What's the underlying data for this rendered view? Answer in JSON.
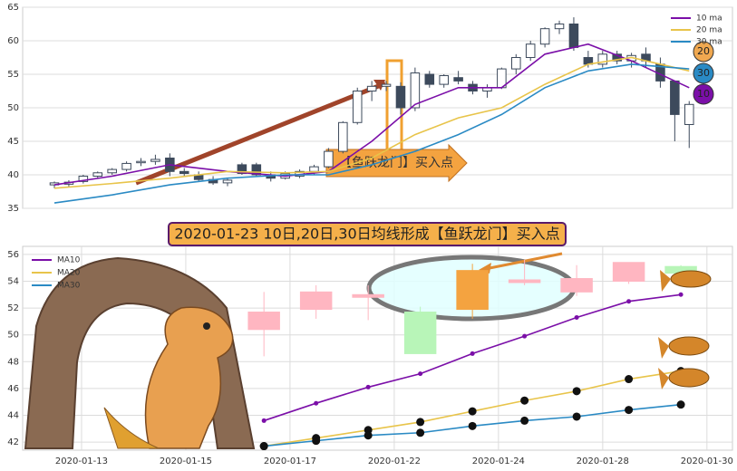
{
  "chart_data": [
    {
      "type": "candlestick",
      "annotation": "【鱼跃龙门】买入点",
      "legend": "upper right",
      "grid": true,
      "up_color": "#ffffff",
      "down_color": "#3d4a5c",
      "xlim": [
        -2.2,
        47
      ],
      "ylim": [
        35,
        65
      ],
      "yticks": [
        35,
        40,
        45,
        50,
        55,
        60,
        65
      ],
      "x": [
        0,
        1,
        2,
        3,
        4,
        5,
        6,
        7,
        8,
        9,
        10,
        11,
        12,
        13,
        14,
        15,
        16,
        17,
        18,
        19,
        20,
        21,
        22,
        23,
        24,
        25,
        26,
        27,
        28,
        29,
        30,
        31,
        32,
        33,
        34,
        35,
        36,
        37,
        38,
        39,
        40,
        41,
        42,
        43,
        44
      ],
      "open": [
        38.5,
        38.6,
        39,
        39.8,
        40.3,
        40.8,
        41.8,
        42,
        42.5,
        40.5,
        40,
        39.3,
        38.8,
        41.5,
        41.5,
        40,
        39.5,
        39.8,
        40.5,
        41.2,
        43.5,
        47.8,
        52.5,
        53.2,
        53.2,
        50,
        55,
        53.5,
        54.5,
        53.5,
        52.5,
        53,
        55.8,
        57.5,
        59.5,
        61.8,
        62.5,
        57.5,
        56.5,
        58,
        57,
        58,
        56.5,
        54,
        47.5
      ],
      "high": [
        39,
        39.2,
        40,
        40.5,
        41,
        42,
        42.5,
        43,
        43.2,
        41,
        40.5,
        39.8,
        39.5,
        41.8,
        41.8,
        40.5,
        40.5,
        40.8,
        41.5,
        44,
        48,
        53,
        54,
        54,
        53.8,
        56,
        55.5,
        55,
        55.5,
        54,
        53.5,
        56,
        58,
        60,
        62,
        63,
        63.5,
        58.5,
        58.5,
        58.5,
        58.2,
        59,
        57.5,
        54,
        51
      ],
      "low": [
        38,
        38.2,
        38.7,
        39.5,
        40,
        40.5,
        41.3,
        41.5,
        39.8,
        39.8,
        39,
        38.5,
        38.3,
        40,
        39.8,
        39,
        39.3,
        39.5,
        40,
        41,
        43.2,
        47.5,
        51,
        52.5,
        49,
        49.5,
        53,
        53,
        53.5,
        52,
        51.5,
        52.8,
        55,
        57,
        59,
        61,
        58.5,
        56,
        56,
        56.5,
        56,
        56,
        53,
        45,
        44
      ],
      "close": [
        38.8,
        38.9,
        39.8,
        40.3,
        40.8,
        41.7,
        42,
        42.3,
        40.5,
        40.2,
        39.3,
        38.8,
        39.2,
        40.2,
        40,
        39.5,
        40.2,
        40.5,
        41.2,
        43.5,
        47.8,
        52.5,
        53.2,
        53.5,
        50,
        55.2,
        53.5,
        54.8,
        54,
        52.5,
        53,
        55.8,
        57.5,
        59.5,
        61.8,
        62.5,
        59,
        56.5,
        58,
        57,
        57.8,
        57,
        54,
        49,
        50.5
      ],
      "series": [
        {
          "name": "10 ma",
          "color": "#7b0fa8",
          "badge": 10,
          "x": [
            0,
            4,
            8,
            12,
            16,
            19,
            22,
            25,
            28,
            31,
            34,
            37,
            40,
            44
          ],
          "values": [
            38.5,
            39.8,
            41.5,
            40.5,
            39.8,
            40.5,
            45,
            50.5,
            53,
            53,
            58,
            59.5,
            57,
            53
          ]
        },
        {
          "name": "20 ma",
          "color": "#e8c44a",
          "badge": 20,
          "x": [
            0,
            4,
            8,
            12,
            16,
            19,
            22,
            25,
            28,
            31,
            34,
            37,
            40,
            44
          ],
          "values": [
            38,
            38.7,
            39.5,
            40.5,
            40.3,
            40.5,
            42.5,
            46,
            48.5,
            50,
            53.5,
            56.5,
            57.5,
            55.5
          ]
        },
        {
          "name": "30 ma",
          "color": "#2a8ac4",
          "badge": 30,
          "x": [
            0,
            4,
            8,
            12,
            16,
            19,
            22,
            25,
            28,
            31,
            34,
            37,
            40,
            44
          ],
          "values": [
            35.8,
            37,
            38.5,
            39.5,
            40,
            40,
            41.5,
            43.5,
            46,
            49,
            53,
            55.5,
            56.5,
            55.8
          ]
        }
      ]
    },
    {
      "type": "candlestick",
      "title": "2020-01-23 10日,20日,30日均线形成【鱼跃龙门】买入点",
      "legend": "upper left",
      "grid": true,
      "candle_colors": [
        "#ffb6c1",
        "#ffb6c1",
        "#ffb6c1",
        "#b8f5b8",
        "#f4a340",
        "#ffb6c1",
        "#ffb6c1",
        "#ffb6c1",
        "#b8f5b8"
      ],
      "xlim": [
        -1.13,
        12.49
      ],
      "ylim": [
        41.4,
        56.6
      ],
      "yticks": [
        42,
        44,
        46,
        48,
        50,
        52,
        54,
        56
      ],
      "xticks": [
        {
          "value": 0,
          "label": "2020-01-13"
        },
        {
          "value": 2,
          "label": "2020-01-15"
        },
        {
          "value": 4,
          "label": "2020-01-17"
        },
        {
          "value": 6,
          "label": "2020-01-22"
        },
        {
          "value": 8,
          "label": "2020-01-24"
        },
        {
          "value": 10,
          "label": "2020-01-28"
        },
        {
          "value": 12,
          "label": "2020-01-30"
        }
      ],
      "x": [
        3.5,
        4.5,
        5.5,
        6.5,
        7.5,
        8.5,
        9.5,
        10.5,
        11.5
      ],
      "open": [
        50.4,
        51.9,
        52.8,
        51.7,
        51.9,
        53.9,
        53.2,
        54,
        55.1
      ],
      "high": [
        53.2,
        53.7,
        53.7,
        52.1,
        55.3,
        55.6,
        55.2,
        55.4,
        55.2
      ],
      "low": [
        48.4,
        51.2,
        51.1,
        48.6,
        51.2,
        53.7,
        52.9,
        53.8,
        54.6
      ],
      "close": [
        51.7,
        53.2,
        53,
        48.6,
        54.8,
        54.1,
        54.2,
        55.4,
        54.6
      ],
      "series": [
        {
          "name": "MA10",
          "color": "#7b0fa8",
          "marker_color": "#7b0fa8",
          "x": [
            3.5,
            4.5,
            5.5,
            6.5,
            7.5,
            8.5,
            9.5,
            10.5,
            11.5
          ],
          "values": [
            43.6,
            44.9,
            46.1,
            47.1,
            48.6,
            49.9,
            51.3,
            52.5,
            53
          ]
        },
        {
          "name": "MA20",
          "color": "#e8c44a",
          "marker_color": "#111111",
          "x": [
            3.5,
            4.5,
            5.5,
            6.5,
            7.5,
            8.5,
            9.5,
            10.5,
            11.5
          ],
          "values": [
            41.7,
            42.3,
            42.9,
            43.5,
            44.3,
            45.1,
            45.8,
            46.7,
            47.3
          ]
        },
        {
          "name": "MA30",
          "color": "#2a8ac4",
          "marker_color": "#111111",
          "x": [
            3.5,
            4.5,
            5.5,
            6.5,
            7.5,
            8.5,
            9.5,
            10.5,
            11.5
          ],
          "values": [
            41.7,
            42.1,
            42.5,
            42.7,
            43.2,
            43.6,
            43.9,
            44.4,
            44.8
          ]
        }
      ]
    }
  ]
}
